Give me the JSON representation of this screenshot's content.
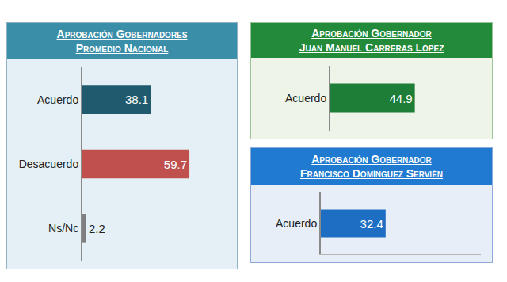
{
  "chart_data": [
    {
      "type": "bar",
      "title": "Aprobación Gobernadores",
      "subtitle": "Promedio Nacional",
      "orientation": "horizontal",
      "categories": [
        "Acuerdo",
        "Desacuerdo",
        "Ns/Nc"
      ],
      "values": [
        38.1,
        59.7,
        2.2
      ],
      "colors": [
        "#1f5a6e",
        "#c0504d",
        "#7f7f7f"
      ],
      "xlim": [
        0,
        80
      ],
      "data_labels": true,
      "tick_labels": "y"
    },
    {
      "type": "bar",
      "title": "Aprobación Gobernador",
      "subtitle": "Juan Manuel Carreras López",
      "orientation": "horizontal",
      "categories": [
        "Acuerdo"
      ],
      "values": [
        44.9
      ],
      "colors": [
        "#1e7d36"
      ],
      "xlim": [
        0,
        80
      ],
      "data_labels": true,
      "tick_labels": "y"
    },
    {
      "type": "bar",
      "title": "Aprobación Gobernador",
      "subtitle": "Francisco Domínguez Servién",
      "orientation": "horizontal",
      "categories": [
        "Acuerdo"
      ],
      "values": [
        32.4
      ],
      "colors": [
        "#1e6fc4"
      ],
      "xlim": [
        0,
        80
      ],
      "data_labels": true,
      "tick_labels": "y"
    }
  ]
}
